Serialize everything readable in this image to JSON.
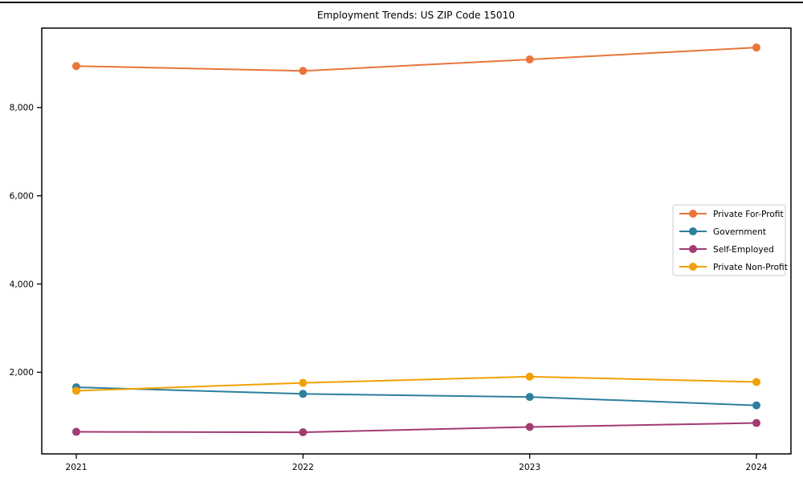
{
  "chart_data": {
    "type": "line",
    "title": "Employment Trends: US ZIP Code 15010",
    "categories": [
      "2021",
      "2022",
      "2023",
      "2024"
    ],
    "series": [
      {
        "name": "Private For-Profit",
        "color": "#E8763B",
        "values": [
          8940,
          8830,
          9090,
          9360
        ]
      },
      {
        "name": "Government",
        "color": "#2E7F9E",
        "values": [
          1660,
          1510,
          1440,
          1250
        ]
      },
      {
        "name": "Self-Employed",
        "color": "#A23B72",
        "values": [
          650,
          640,
          760,
          850
        ]
      },
      {
        "name": "Private Non-Profit",
        "color": "#F2A104",
        "values": [
          1580,
          1760,
          1900,
          1780
        ]
      }
    ],
    "xlabel": "",
    "ylabel": "",
    "ylim": [
      150,
      9800
    ],
    "yticks": [
      2000,
      4000,
      6000,
      8000
    ],
    "ytick_labels": [
      "2,000",
      "4,000",
      "6,000",
      "8,000"
    ],
    "grid": false,
    "marker": "circle",
    "legend_position": "middle-right",
    "colors": {
      "spine": "#000000",
      "legend_border": "#cccccc",
      "background": "#ffffff"
    }
  }
}
